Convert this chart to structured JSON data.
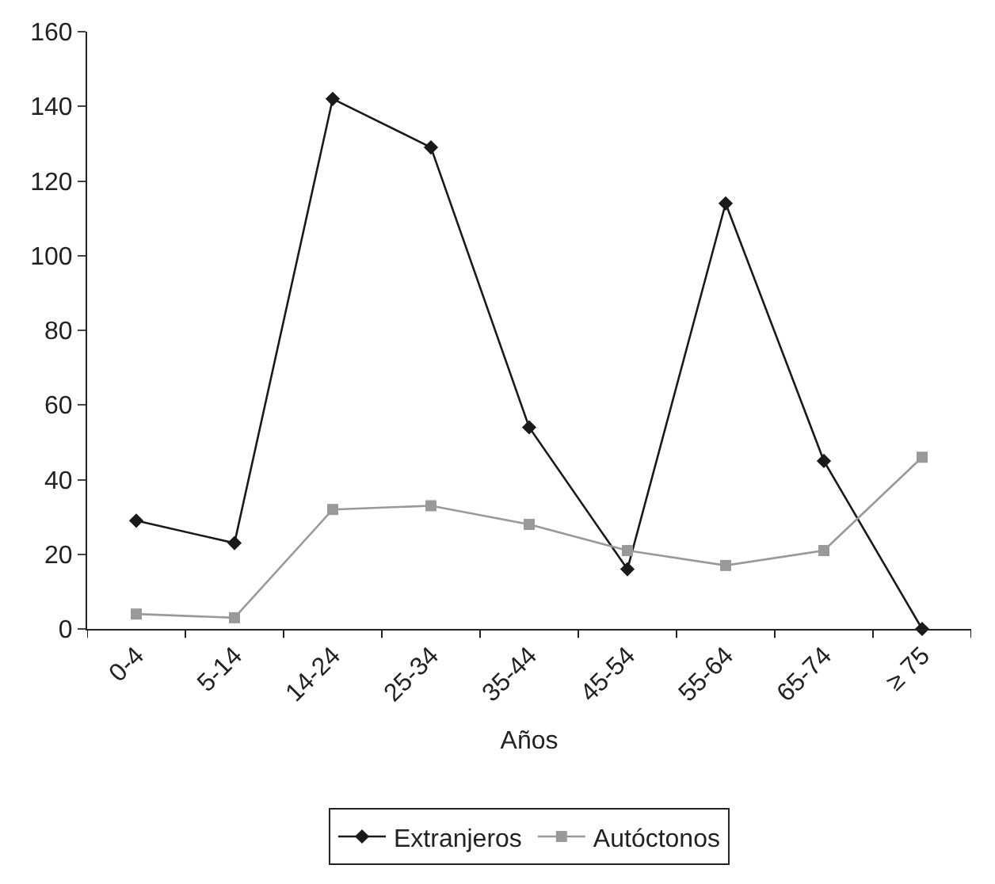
{
  "chart_data": {
    "type": "line",
    "xlabel": "Años",
    "categories": [
      "0-4",
      "5-14",
      "14-24",
      "25-34",
      "35-44",
      "45-54",
      "55-64",
      "65-74",
      "≥ 75"
    ],
    "series": [
      {
        "name": "Extranjeros",
        "color": "#1a1a1a",
        "marker": "diamond",
        "values": [
          29,
          23,
          142,
          129,
          54,
          16,
          114,
          45,
          0
        ]
      },
      {
        "name": "Autóctonos",
        "color": "#999999",
        "marker": "square",
        "values": [
          4,
          3,
          32,
          33,
          28,
          21,
          17,
          21,
          46
        ]
      }
    ],
    "ylim": [
      0,
      160
    ],
    "yticks": [
      0,
      20,
      40,
      60,
      80,
      100,
      120,
      140,
      160
    ],
    "legend": "bottom",
    "line_style": "solid"
  }
}
